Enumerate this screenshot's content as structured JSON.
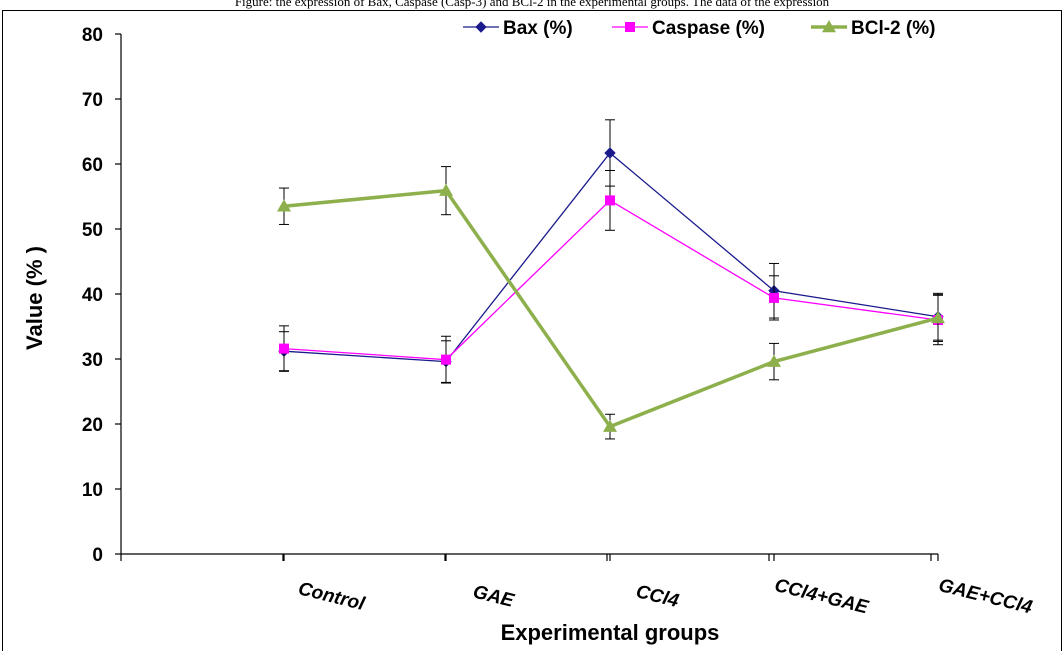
{
  "caption": "Figure: the expression of Bax, Caspase (Casp-3) and BCl-2 in the experimental groups. The data of the expression",
  "chart_data": {
    "type": "line",
    "title": "",
    "xlabel": "Experimental groups",
    "ylabel": "Value (% )",
    "ylim": [
      0,
      80
    ],
    "yticks": [
      0,
      10,
      20,
      30,
      40,
      50,
      60,
      70,
      80
    ],
    "categories": [
      "Control",
      "GAE",
      "CCl4",
      "CCl4+GAE",
      "GAE+CCl4"
    ],
    "legend_position": "top-right",
    "grid": false,
    "series": [
      {
        "name": "Bax (%)",
        "color": "#1a1a8c",
        "marker": "diamond",
        "values": [
          31.2,
          29.6,
          61.7,
          40.5,
          36.5
        ],
        "errors": [
          3.0,
          3.2,
          5.1,
          4.2,
          3.6
        ]
      },
      {
        "name": "Caspase (%)",
        "color": "#ff00ff",
        "marker": "square",
        "values": [
          31.6,
          29.9,
          54.4,
          39.4,
          36.0
        ],
        "errors": [
          3.5,
          3.6,
          4.6,
          3.4,
          3.8
        ]
      },
      {
        "name": "BCl-2 (%)",
        "color": "#8db04d",
        "marker": "triangle",
        "values": [
          53.5,
          55.9,
          19.6,
          29.6,
          36.3
        ],
        "errors": [
          2.8,
          3.7,
          1.9,
          2.8,
          3.6
        ]
      }
    ]
  }
}
